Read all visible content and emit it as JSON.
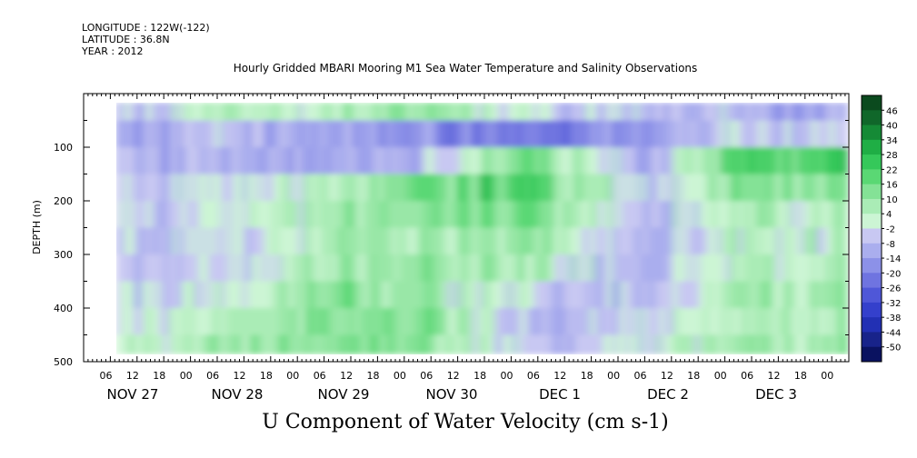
{
  "header": {
    "longitude": "LONGITUDE : 122W(-122)",
    "latitude": "LATITUDE : 36.8N",
    "year": "YEAR : 2012"
  },
  "title": "Hourly Gridded MBARI Mooring M1 Sea Water Temperature and Salinity Observations",
  "bottom_title": "U Component of Water Velocity (cm s-1)",
  "chart_data": {
    "type": "heatmap",
    "title": "Hourly Gridded MBARI Mooring M1 Sea Water Temperature and Salinity Observations",
    "xlabel": "",
    "ylabel": "DEPTH (m)",
    "value_label": "U Component of Water Velocity (cm s-1)",
    "y_axis": {
      "range": [
        0,
        500
      ],
      "reversed": true,
      "ticks": [
        100,
        200,
        300,
        400,
        500
      ]
    },
    "x_axis": {
      "hour_ticks": [
        "06",
        "12",
        "18",
        "00",
        "06",
        "12",
        "18",
        "00",
        "06",
        "12",
        "18",
        "00",
        "06",
        "12",
        "18",
        "00",
        "06",
        "12",
        "18",
        "00",
        "06",
        "12",
        "18",
        "00",
        "06",
        "12",
        "18",
        "00"
      ],
      "day_labels": [
        "NOV 27",
        "NOV 28",
        "NOV 29",
        "NOV 30",
        "DEC  1",
        "DEC  2",
        "DEC  3"
      ]
    },
    "colorbar": {
      "levels": [
        "46",
        "40",
        "34",
        "28",
        "22",
        "16",
        "10",
        "4",
        "-2",
        "-8",
        "-14",
        "-20",
        "-26",
        "-32",
        "-38",
        "-44",
        "-50"
      ],
      "colors": [
        "#0b4a1e",
        "#10672a",
        "#158a36",
        "#1fae45",
        "#35c85a",
        "#5ad874",
        "#84e296",
        "#aaecb6",
        "#ccf5d4",
        "#c8c8f2",
        "#aaaeee",
        "#8c91e8",
        "#6f74e0",
        "#4f57d8",
        "#3440cc",
        "#2230b4",
        "#18238a",
        "#0a1260"
      ]
    },
    "depth_profile_summary": {
      "depths_m": [
        25,
        75,
        125,
        175,
        225,
        275,
        325,
        375,
        425,
        475
      ],
      "daily_mean_u": {
        "NOV 27": [
          -10,
          -12,
          -8,
          -6,
          -4,
          -6,
          -8,
          -4,
          -2,
          2
        ],
        "NOV 28": [
          4,
          -8,
          -10,
          -4,
          -2,
          -4,
          -6,
          -2,
          4,
          6
        ],
        "NOV 29": [
          6,
          -12,
          -14,
          6,
          10,
          8,
          10,
          12,
          14,
          16
        ],
        "NOV 30": [
          10,
          -18,
          -8,
          16,
          12,
          8,
          10,
          8,
          12,
          10
        ],
        "DEC  1": [
          -4,
          -22,
          18,
          22,
          16,
          10,
          6,
          -4,
          -8,
          -6
        ],
        "DEC  2": [
          -6,
          -14,
          -12,
          -6,
          -8,
          -10,
          -10,
          -8,
          -4,
          -2
        ],
        "DEC  3": [
          -10,
          -4,
          22,
          14,
          6,
          4,
          6,
          8,
          6,
          10
        ]
      }
    }
  }
}
